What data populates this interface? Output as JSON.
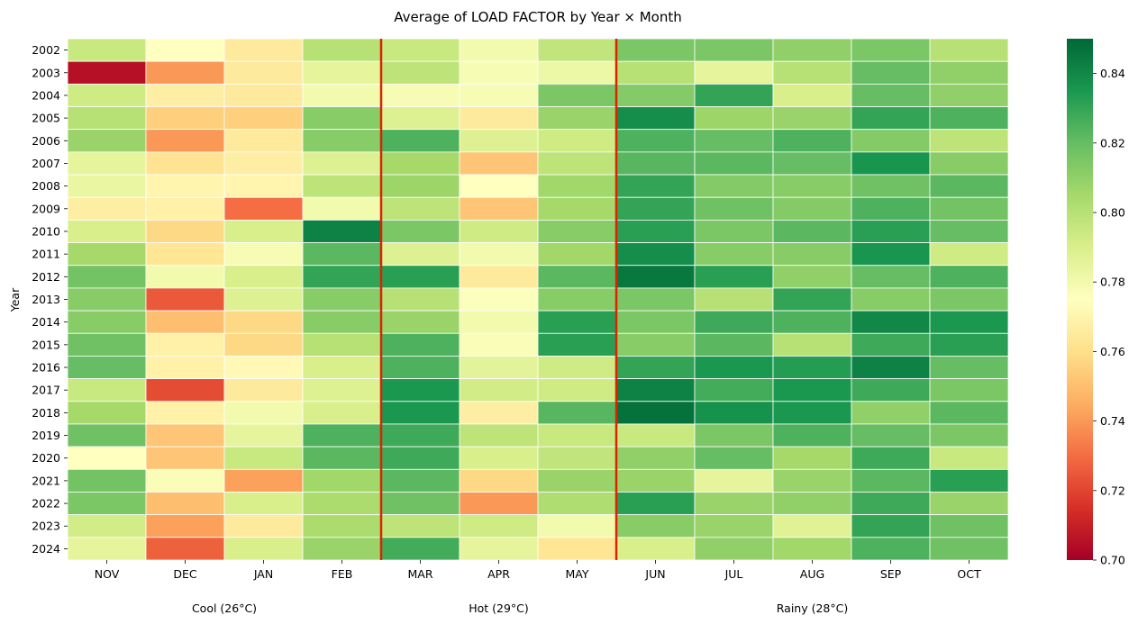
{
  "chart_data": {
    "type": "heatmap",
    "title": "Average of LOAD FACTOR by Year × Month",
    "xlabel": "",
    "ylabel": "Year",
    "columns": [
      "NOV",
      "DEC",
      "JAN",
      "FEB",
      "MAR",
      "APR",
      "MAY",
      "JUN",
      "JUL",
      "AUG",
      "SEP",
      "OCT"
    ],
    "rows": [
      "2002",
      "2003",
      "2004",
      "2005",
      "2006",
      "2007",
      "2008",
      "2009",
      "2010",
      "2011",
      "2012",
      "2013",
      "2014",
      "2015",
      "2016",
      "2017",
      "2018",
      "2019",
      "2020",
      "2021",
      "2022",
      "2023",
      "2024"
    ],
    "values": [
      [
        0.795,
        0.775,
        0.765,
        0.8,
        0.795,
        0.78,
        0.797,
        0.815,
        0.815,
        0.81,
        0.815,
        0.8
      ],
      [
        0.705,
        0.74,
        0.765,
        0.785,
        0.798,
        0.778,
        0.782,
        0.8,
        0.785,
        0.8,
        0.82,
        0.81
      ],
      [
        0.793,
        0.767,
        0.765,
        0.78,
        0.778,
        0.778,
        0.815,
        0.813,
        0.83,
        0.79,
        0.82,
        0.81
      ],
      [
        0.8,
        0.755,
        0.755,
        0.812,
        0.788,
        0.765,
        0.808,
        0.838,
        0.807,
        0.808,
        0.83,
        0.825
      ],
      [
        0.808,
        0.74,
        0.765,
        0.812,
        0.825,
        0.788,
        0.793,
        0.825,
        0.82,
        0.825,
        0.813,
        0.798
      ],
      [
        0.785,
        0.762,
        0.767,
        0.788,
        0.805,
        0.752,
        0.798,
        0.823,
        0.822,
        0.82,
        0.836,
        0.812
      ],
      [
        0.783,
        0.77,
        0.77,
        0.798,
        0.807,
        0.775,
        0.806,
        0.83,
        0.813,
        0.812,
        0.818,
        0.822
      ],
      [
        0.767,
        0.768,
        0.73,
        0.78,
        0.798,
        0.752,
        0.805,
        0.83,
        0.818,
        0.813,
        0.825,
        0.817
      ],
      [
        0.79,
        0.758,
        0.79,
        0.842,
        0.815,
        0.793,
        0.812,
        0.832,
        0.815,
        0.822,
        0.832,
        0.82
      ],
      [
        0.805,
        0.763,
        0.778,
        0.822,
        0.788,
        0.78,
        0.806,
        0.838,
        0.812,
        0.812,
        0.836,
        0.793
      ],
      [
        0.817,
        0.78,
        0.79,
        0.83,
        0.832,
        0.765,
        0.822,
        0.845,
        0.832,
        0.81,
        0.82,
        0.825
      ],
      [
        0.812,
        0.725,
        0.788,
        0.812,
        0.8,
        0.776,
        0.812,
        0.815,
        0.8,
        0.83,
        0.812,
        0.815
      ],
      [
        0.812,
        0.75,
        0.758,
        0.812,
        0.808,
        0.78,
        0.832,
        0.815,
        0.828,
        0.825,
        0.84,
        0.835
      ],
      [
        0.818,
        0.768,
        0.758,
        0.8,
        0.825,
        0.777,
        0.832,
        0.812,
        0.822,
        0.8,
        0.828,
        0.832
      ],
      [
        0.82,
        0.768,
        0.772,
        0.79,
        0.825,
        0.786,
        0.793,
        0.83,
        0.835,
        0.833,
        0.842,
        0.82
      ],
      [
        0.795,
        0.722,
        0.765,
        0.788,
        0.835,
        0.792,
        0.793,
        0.842,
        0.827,
        0.835,
        0.828,
        0.815
      ],
      [
        0.805,
        0.768,
        0.78,
        0.79,
        0.835,
        0.767,
        0.823,
        0.847,
        0.837,
        0.835,
        0.81,
        0.822
      ],
      [
        0.818,
        0.752,
        0.785,
        0.825,
        0.828,
        0.798,
        0.795,
        0.795,
        0.815,
        0.825,
        0.82,
        0.815
      ],
      [
        0.775,
        0.752,
        0.795,
        0.822,
        0.828,
        0.79,
        0.797,
        0.81,
        0.82,
        0.805,
        0.828,
        0.795
      ],
      [
        0.817,
        0.777,
        0.742,
        0.806,
        0.822,
        0.758,
        0.808,
        0.808,
        0.785,
        0.808,
        0.822,
        0.832
      ],
      [
        0.815,
        0.75,
        0.79,
        0.803,
        0.818,
        0.74,
        0.802,
        0.832,
        0.808,
        0.81,
        0.828,
        0.808
      ],
      [
        0.792,
        0.742,
        0.765,
        0.803,
        0.798,
        0.793,
        0.78,
        0.812,
        0.808,
        0.787,
        0.83,
        0.818
      ],
      [
        0.785,
        0.727,
        0.79,
        0.808,
        0.827,
        0.785,
        0.763,
        0.79,
        0.81,
        0.806,
        0.825,
        0.818
      ]
    ],
    "colorbar": {
      "range": [
        0.7,
        0.85
      ],
      "ticks": [
        "0.70",
        "0.72",
        "0.74",
        "0.76",
        "0.78",
        "0.80",
        "0.82",
        "0.84"
      ],
      "colormap": "RdYlGn"
    },
    "season_dividers_after_column": [
      "FEB",
      "MAY"
    ],
    "season_divider_color": "#dd2200",
    "seasons": [
      {
        "label": "Cool (26°C)",
        "from": "NOV",
        "to": "FEB"
      },
      {
        "label": "Hot (29°C)",
        "from": "MAR",
        "to": "MAY"
      },
      {
        "label": "Rainy (28°C)",
        "from": "JUN",
        "to": "OCT"
      }
    ],
    "grid": true,
    "legend": "colorbar-right"
  }
}
